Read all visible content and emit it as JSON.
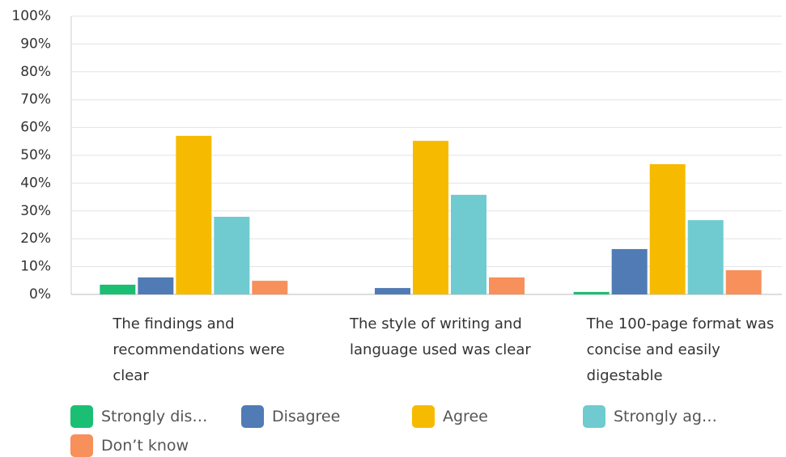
{
  "chart_data": {
    "type": "bar",
    "categories": [
      "The findings and recommendations were clear",
      "The style of writing and language used was clear",
      "The 100-page format was concise and easily digestable"
    ],
    "series": [
      {
        "name": "Strongly dis…",
        "color": "#1bbf73",
        "values": [
          3.5,
          0,
          0.9
        ]
      },
      {
        "name": "Disagree",
        "color": "#507bb5",
        "values": [
          6.1,
          2.3,
          16.3
        ]
      },
      {
        "name": "Agree",
        "color": "#f6bb00",
        "values": [
          57,
          55.2,
          46.8
        ]
      },
      {
        "name": "Strongly ag…",
        "color": "#6fcbd0",
        "values": [
          27.9,
          35.8,
          26.7
        ]
      },
      {
        "name": "Don’t know",
        "color": "#f7905a",
        "values": [
          4.9,
          6.1,
          8.7
        ]
      }
    ],
    "ylim": [
      0,
      100
    ],
    "yticks": [
      {
        "value": 0,
        "label": "0%"
      },
      {
        "value": 10,
        "label": "10%"
      },
      {
        "value": 20,
        "label": "20%"
      },
      {
        "value": 30,
        "label": "30%"
      },
      {
        "value": 40,
        "label": "40%"
      },
      {
        "value": 50,
        "label": "50%"
      },
      {
        "value": 60,
        "label": "60%"
      },
      {
        "value": 70,
        "label": "70%"
      },
      {
        "value": 80,
        "label": "80%"
      },
      {
        "value": 90,
        "label": "90%"
      },
      {
        "value": 100,
        "label": "100%"
      }
    ],
    "grid": true
  }
}
